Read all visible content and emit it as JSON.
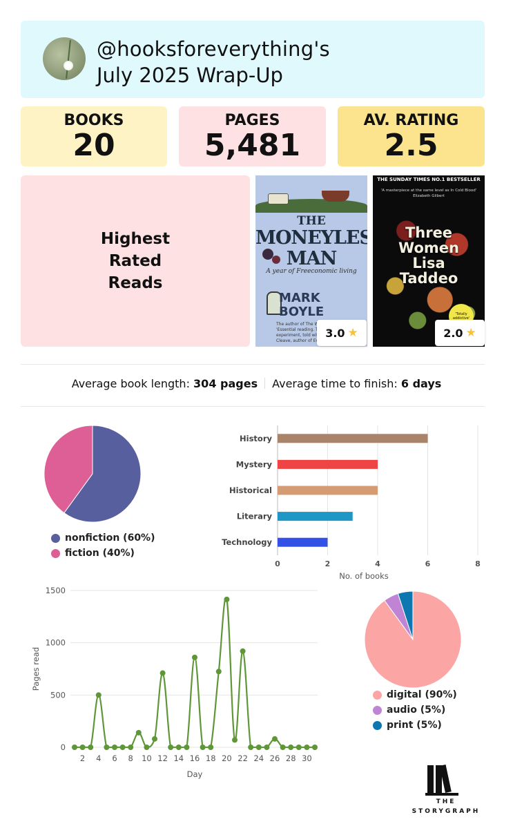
{
  "header": {
    "handle": "@hooksforeverything's",
    "title": "July 2025 Wrap-Up"
  },
  "stats": [
    {
      "label": "BOOKS",
      "value": "20",
      "color": "#fdf3c4"
    },
    {
      "label": "PAGES",
      "value": "5,481",
      "color": "#fde1e3"
    },
    {
      "label": "AV. RATING",
      "value": "2.5",
      "color": "#fbe48d"
    }
  ],
  "highest_rated": {
    "heading": "Highest Rated Reads",
    "books": [
      {
        "title_line1": "THE",
        "title_line2": "MONEYLESS",
        "title_line3": "MAN",
        "subtitle": "A year of Freeconomic living",
        "author_line1": "MARK",
        "author_line2": "BOYLE",
        "small_text": "The author of The Way Home · 'Essential reading. The story of an experiment, told with humility...' Chris Cleave, author of Ev",
        "rating": "3.0"
      },
      {
        "top_text": "THE SUNDAY TIMES NO.1 BESTSELLER",
        "quote": "'A masterpiece at the same level as In Cold Blood' Elizabeth Gilbert",
        "title_line1": "Three",
        "title_line2": "Women",
        "author_line1": "Lisa",
        "author_line2": "Taddeo",
        "badge": "'Totally addictive'",
        "rating": "2.0"
      }
    ]
  },
  "averages": {
    "length_label": "Average book length: ",
    "length_value": "304 pages",
    "time_label": "Average time to finish: ",
    "time_value": "6 days"
  },
  "chart_data": [
    {
      "type": "pie",
      "categories": [
        "nonfiction",
        "fiction"
      ],
      "values": [
        60,
        40
      ],
      "legend_labels": [
        "nonfiction (60%)",
        "fiction (40%)"
      ],
      "colors": [
        "#575f9e",
        "#dd5f96"
      ],
      "legend": "bottom"
    },
    {
      "type": "bar",
      "orientation": "horizontal",
      "categories": [
        "History",
        "Mystery",
        "Historical",
        "Literary",
        "Technology"
      ],
      "values": [
        6,
        4,
        4,
        3,
        2
      ],
      "colors": [
        "#a9836a",
        "#ef4444",
        "#d59c74",
        "#1e97c6",
        "#3451e6"
      ],
      "xlabel": "No. of books",
      "xlim": [
        0,
        8
      ],
      "xticks": [
        0,
        2,
        4,
        6,
        8
      ],
      "grid": true
    },
    {
      "type": "line",
      "x": [
        1,
        2,
        3,
        4,
        5,
        6,
        7,
        8,
        9,
        10,
        11,
        12,
        13,
        14,
        15,
        16,
        17,
        18,
        19,
        20,
        21,
        22,
        23,
        24,
        25,
        26,
        27,
        28,
        29,
        30,
        31
      ],
      "values": [
        0,
        0,
        0,
        500,
        0,
        0,
        0,
        0,
        140,
        0,
        80,
        710,
        0,
        0,
        0,
        860,
        0,
        0,
        725,
        1415,
        70,
        920,
        0,
        0,
        0,
        80,
        0,
        0,
        0,
        0,
        0
      ],
      "color": "#5f9638",
      "xlabel": "Day",
      "ylabel": "Pages read",
      "ylim": [
        0,
        1500
      ],
      "yticks": [
        0,
        500,
        1000,
        1500
      ],
      "xticks": [
        2,
        4,
        6,
        8,
        10,
        12,
        14,
        16,
        18,
        20,
        22,
        24,
        26,
        28,
        30
      ],
      "grid": true
    },
    {
      "type": "pie",
      "categories": [
        "digital",
        "audio",
        "print"
      ],
      "values": [
        90,
        5,
        5
      ],
      "legend_labels": [
        "digital (90%)",
        "audio (5%)",
        "print (5%)"
      ],
      "colors": [
        "#fca5a5",
        "#c084d4",
        "#0f77b0"
      ],
      "legend": "bottom"
    }
  ],
  "logo": {
    "line1": "THE",
    "line2": "STORYGRAPH"
  }
}
